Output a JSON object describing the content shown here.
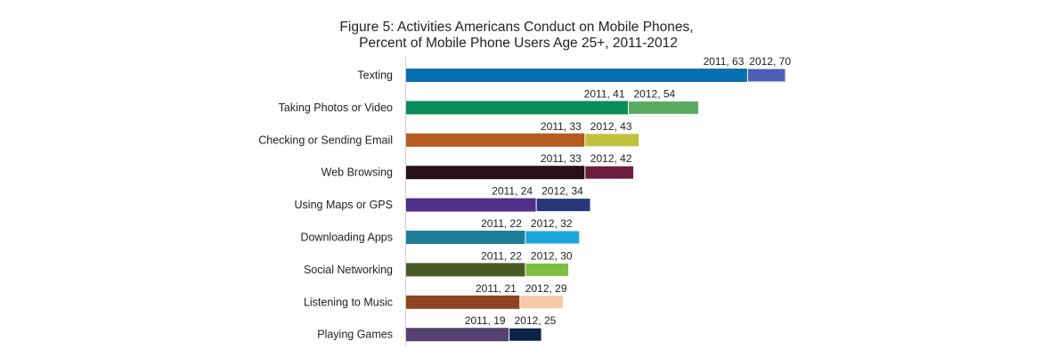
{
  "chart_data": {
    "type": "bar",
    "orientation": "horizontal",
    "title": "Figure 5: Activities Americans Conduct on Mobile Phones,",
    "subtitle": "Percent of Mobile Phone Users Age 25+, 2011-2012",
    "xlabel": "",
    "ylabel": "",
    "xlim": [
      0,
      70
    ],
    "grid": false,
    "legend": "none",
    "categories": [
      "Texting",
      "Taking Photos or Video",
      "Checking or Sending Email",
      "Web Browsing",
      "Using Maps or GPS",
      "Downloading Apps",
      "Social Networking",
      "Listening to Music",
      "Playing Games"
    ],
    "series": [
      {
        "values": [
          63,
          41,
          33,
          33,
          24,
          22,
          22,
          21,
          19
        ]
      },
      {
        "values": [
          70,
          54,
          43,
          42,
          34,
          32,
          30,
          29,
          25
        ]
      }
    ],
    "labels_2011": [
      "2011, 63",
      "2011, 41",
      "2011, 33",
      "2011, 33",
      "2011, 24",
      "2011, 22",
      "2011, 22",
      "2011, 21",
      "2011, 19"
    ],
    "labels_2012": [
      "2012, 70",
      "2012, 54",
      "2012, 43",
      "2012, 42",
      "2012, 34",
      "2012, 32",
      "2012, 30",
      "2012, 29",
      "2012, 25"
    ],
    "colors_2011": [
      "#0a6fb0",
      "#0a8c5a",
      "#b65b22",
      "#2a1018",
      "#4f2f8a",
      "#1f7f98",
      "#465b26",
      "#8e4420",
      "#56406f"
    ],
    "colors_2012": [
      "#4b5fb4",
      "#5bac62",
      "#c3c23f",
      "#6d1f43",
      "#273678",
      "#1fa6dd",
      "#7dbf41",
      "#f7c8a8",
      "#0b2447"
    ]
  }
}
